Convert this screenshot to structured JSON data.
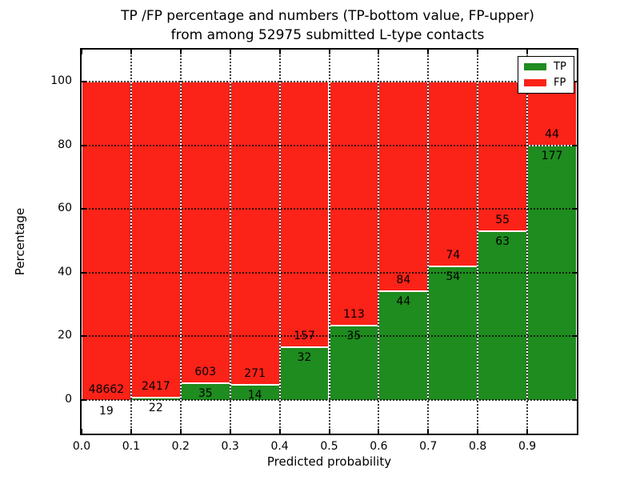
{
  "title": {
    "line1": "TP /FP percentage and numbers (TP-bottom value, FP-upper)",
    "line2": "from among 52975 submitted L-type contacts"
  },
  "axes": {
    "xlabel": "Predicted probability",
    "ylabel": "Percentage",
    "x_tick_labels": [
      "0.0",
      "0.1",
      "0.2",
      "0.3",
      "0.4",
      "0.5",
      "0.6",
      "0.7",
      "0.8",
      "0.9"
    ],
    "y_tick_labels": [
      "0",
      "20",
      "40",
      "60",
      "80",
      "100"
    ],
    "y_tick_values": [
      0,
      20,
      40,
      60,
      80,
      100
    ]
  },
  "legend": {
    "items": [
      {
        "label": "TP",
        "color": "#1e8c1e"
      },
      {
        "label": "FP",
        "color": "#fb2218"
      }
    ]
  },
  "colors": {
    "tp": "#1e8c1e",
    "fp": "#fb2218",
    "grid": "#000000",
    "background": "#ffffff"
  },
  "chart_data": {
    "type": "bar",
    "stacked": true,
    "normalized_to_percent": true,
    "title": "TP /FP percentage and numbers (TP-bottom value, FP-upper) from among 52975 submitted L-type contacts",
    "xlabel": "Predicted probability",
    "ylabel": "Percentage",
    "bin_edges": [
      0.0,
      0.1,
      0.2,
      0.3,
      0.4,
      0.5,
      0.6,
      0.7,
      0.8,
      0.9,
      1.0
    ],
    "categories": [
      "0.0-0.1",
      "0.1-0.2",
      "0.2-0.3",
      "0.3-0.4",
      "0.4-0.5",
      "0.5-0.6",
      "0.6-0.7",
      "0.7-0.8",
      "0.8-0.9",
      "0.9-1.0"
    ],
    "series": [
      {
        "name": "TP",
        "position": "bottom",
        "counts": [
          19,
          22,
          35,
          14,
          32,
          35,
          44,
          54,
          63,
          177
        ]
      },
      {
        "name": "FP",
        "position": "top",
        "counts": [
          48662,
          2417,
          603,
          271,
          157,
          113,
          84,
          74,
          55,
          44
        ]
      }
    ],
    "tp_percent_of_bin": [
      0.04,
      0.9,
      5.49,
      4.91,
      16.93,
      23.65,
      34.38,
      42.19,
      53.39,
      80.09
    ],
    "total_contacts": 52975,
    "ylim": [
      -10.8,
      110.5
    ],
    "xlim": [
      0.0,
      1.0
    ],
    "grid": "dotted",
    "legend_position": "upper right"
  }
}
